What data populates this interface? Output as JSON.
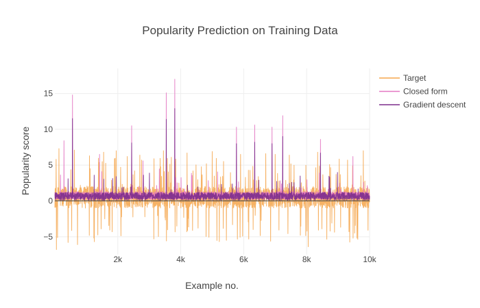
{
  "chart_data": {
    "type": "line",
    "title": "Popularity Prediction on Training Data",
    "xlabel": "Example no.",
    "ylabel": "Popularity score",
    "xlim": [
      0,
      10000
    ],
    "ylim": [
      -7.5,
      18.5
    ],
    "xticks": [
      2000,
      4000,
      6000,
      8000,
      10000
    ],
    "xtick_labels": [
      "2k",
      "4k",
      "6k",
      "8k",
      "10k"
    ],
    "yticks": [
      -5,
      0,
      5,
      10,
      15
    ],
    "ytick_labels": [
      "−5",
      "0",
      "5",
      "10",
      "15"
    ],
    "grid": true,
    "legend_position": "top-right",
    "series": [
      {
        "name": "Target",
        "color": "#f5a54a",
        "n_points": 10000,
        "base_range": [
          -1,
          2
        ],
        "spikes": [
          {
            "x": 50,
            "y": -6.8
          },
          {
            "x": 130,
            "y": 7.3
          },
          {
            "x": 420,
            "y": -5.8
          },
          {
            "x": 620,
            "y": 7.1
          },
          {
            "x": 720,
            "y": -6.1
          },
          {
            "x": 1100,
            "y": 6.3
          },
          {
            "x": 1550,
            "y": 6.8
          },
          {
            "x": 1950,
            "y": 7.0
          },
          {
            "x": 2300,
            "y": 6.2
          },
          {
            "x": 2700,
            "y": 6.4
          },
          {
            "x": 3150,
            "y": 5.9
          },
          {
            "x": 3450,
            "y": 7.0
          },
          {
            "x": 3700,
            "y": 6.1
          },
          {
            "x": 4200,
            "y": 6.7
          },
          {
            "x": 4550,
            "y": -3.8
          },
          {
            "x": 5000,
            "y": 6.9
          },
          {
            "x": 5450,
            "y": -5.5
          },
          {
            "x": 5900,
            "y": 6.5
          },
          {
            "x": 6300,
            "y": -4.0
          },
          {
            "x": 6700,
            "y": 6.6
          },
          {
            "x": 7000,
            "y": 6.5
          },
          {
            "x": 7450,
            "y": 6.4
          },
          {
            "x": 7800,
            "y": -4.8
          },
          {
            "x": 8050,
            "y": -6.4
          },
          {
            "x": 8350,
            "y": 6.8
          },
          {
            "x": 8800,
            "y": -3.1
          },
          {
            "x": 9300,
            "y": 5.7
          },
          {
            "x": 9600,
            "y": -5.2
          },
          {
            "x": 9800,
            "y": 7.0
          },
          {
            "x": 9950,
            "y": -4.1
          }
        ]
      },
      {
        "name": "Closed form",
        "color": "#e377c2",
        "n_points": 10000,
        "base_range": [
          0.2,
          1.3
        ],
        "spikes": [
          {
            "x": 290,
            "y": 8.4
          },
          {
            "x": 560,
            "y": 14.8
          },
          {
            "x": 1420,
            "y": 6.5
          },
          {
            "x": 2440,
            "y": 10.5
          },
          {
            "x": 2800,
            "y": 5.6
          },
          {
            "x": 3540,
            "y": 15.1
          },
          {
            "x": 3810,
            "y": 17.0
          },
          {
            "x": 5770,
            "y": 10.3
          },
          {
            "x": 6350,
            "y": 10.6
          },
          {
            "x": 6900,
            "y": 10.3
          },
          {
            "x": 7240,
            "y": 11.9
          },
          {
            "x": 8440,
            "y": 8.6
          },
          {
            "x": 9470,
            "y": 6.2
          }
        ]
      },
      {
        "name": "Gradient descent",
        "color": "#7b2c8c",
        "n_points": 10000,
        "base_range": [
          0.1,
          1.2
        ],
        "spikes": [
          {
            "x": 560,
            "y": 11.5
          },
          {
            "x": 2440,
            "y": 8.1
          },
          {
            "x": 3540,
            "y": 11.4
          },
          {
            "x": 3810,
            "y": 12.9
          },
          {
            "x": 5770,
            "y": 8.0
          },
          {
            "x": 6350,
            "y": 8.2
          },
          {
            "x": 6900,
            "y": 8.0
          },
          {
            "x": 7240,
            "y": 9.0
          },
          {
            "x": 8440,
            "y": 6.7
          }
        ]
      }
    ]
  }
}
